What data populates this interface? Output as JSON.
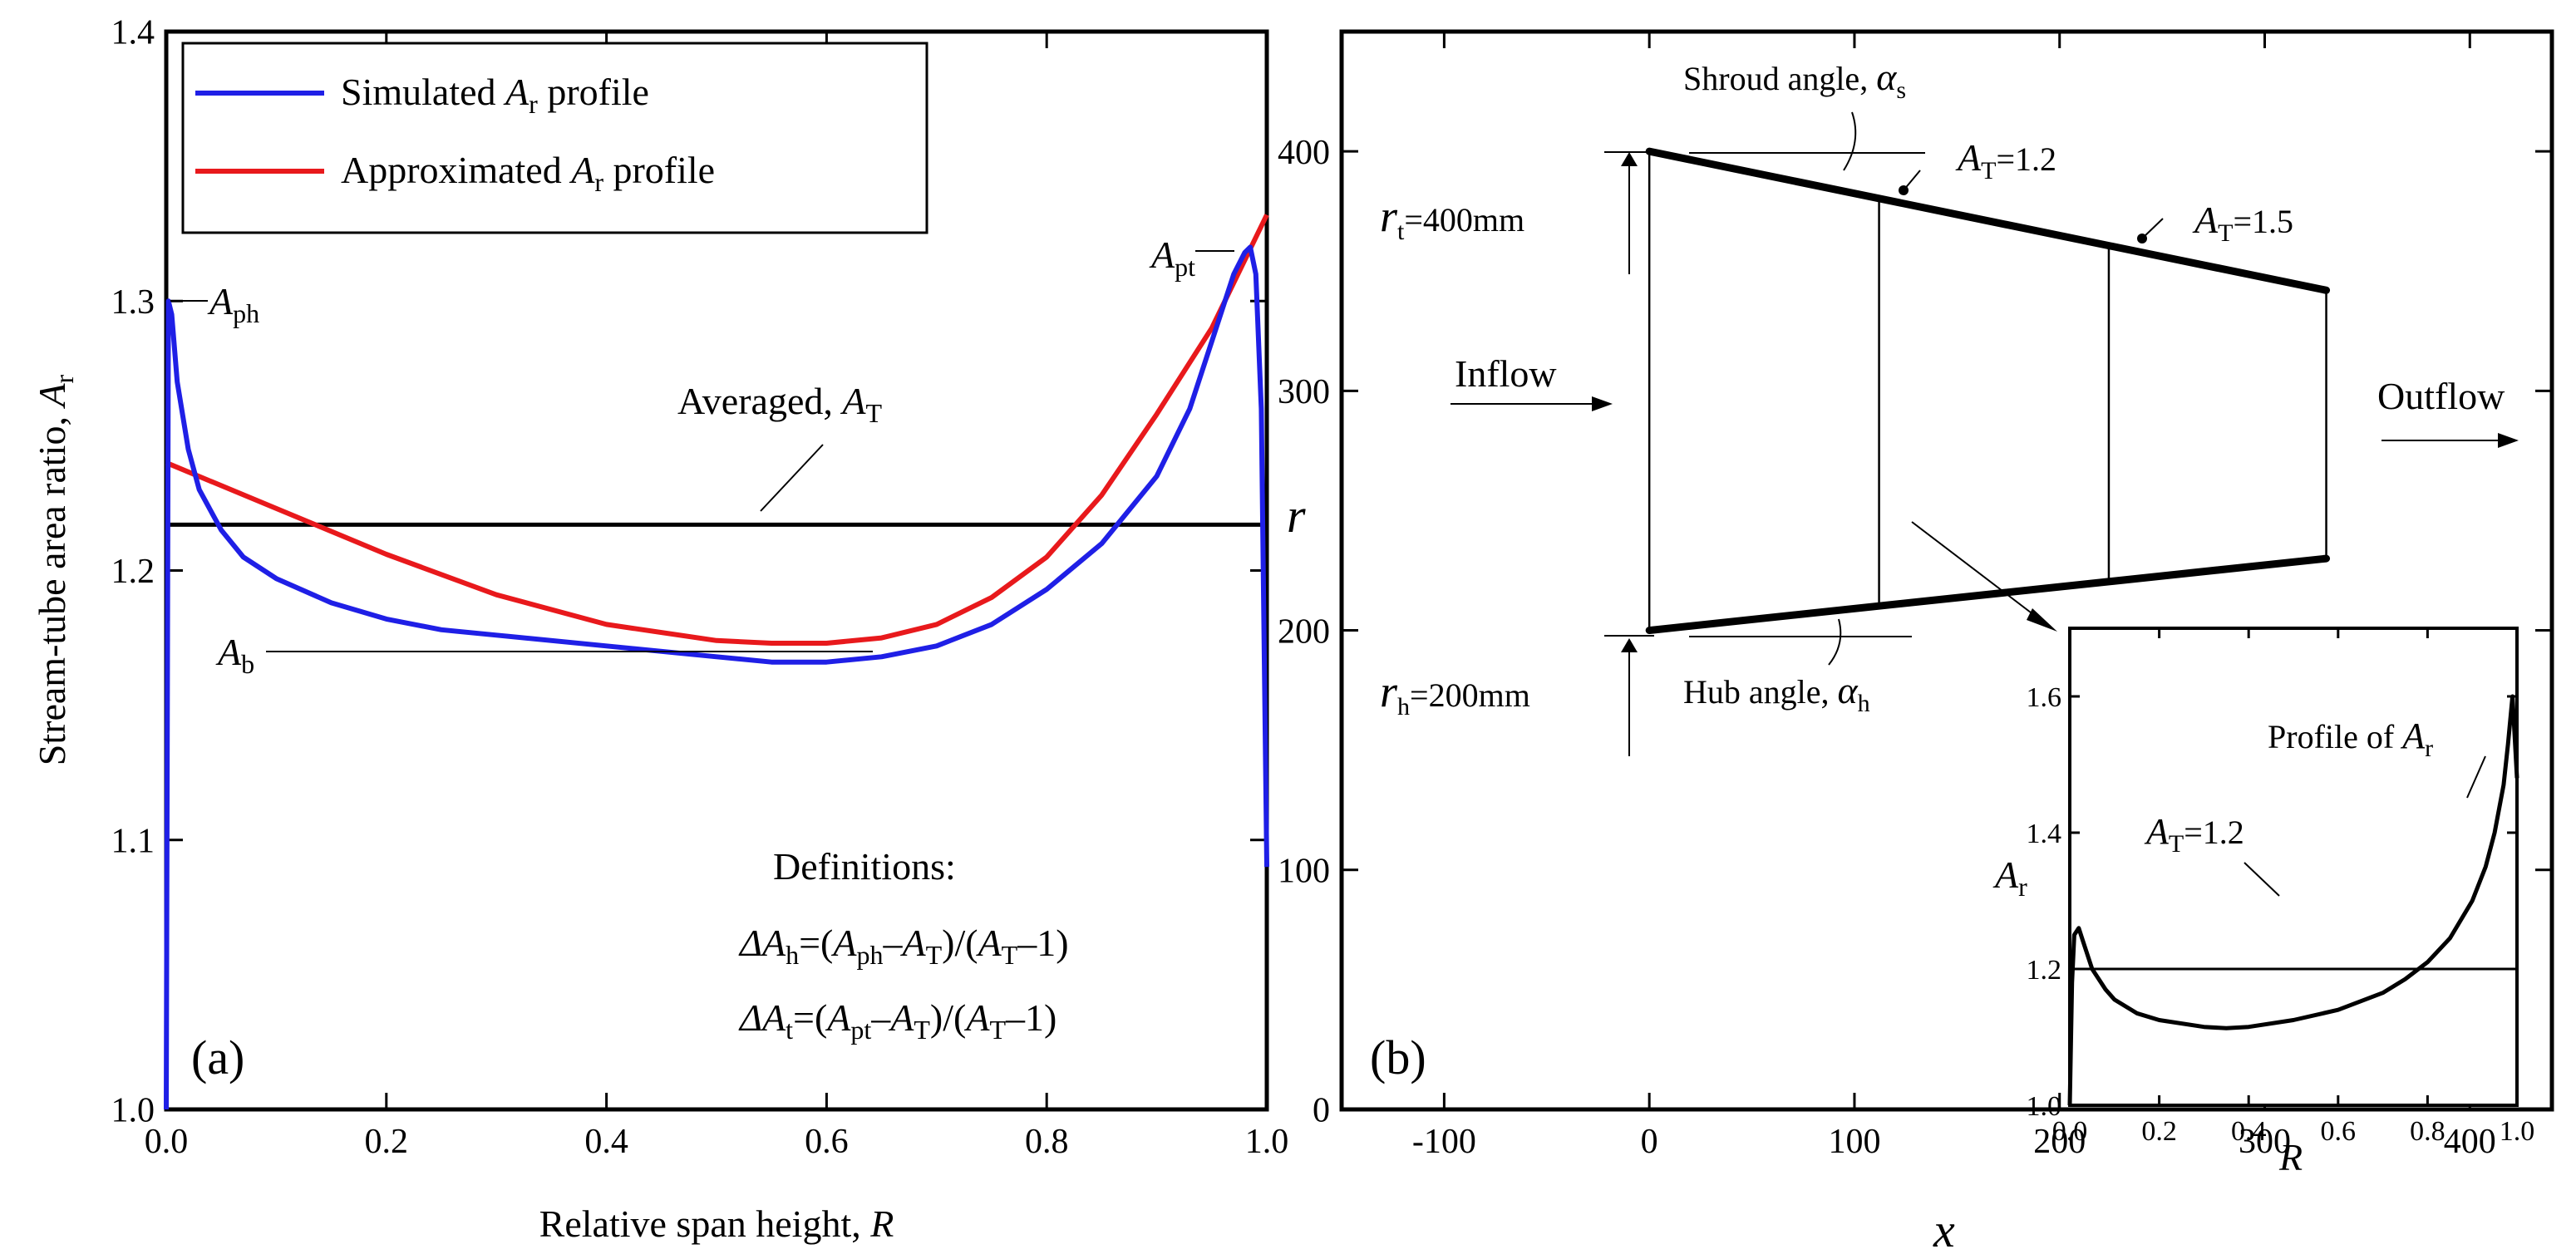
{
  "chart_data": [
    {
      "panel": "(a)",
      "type": "line",
      "xlabel": "Relative span height, ",
      "xlabel_var": "R",
      "ylabel": "Stream-tube area ratio, ",
      "ylabel_var": "A",
      "ylabel_sub": "r",
      "xlim": [
        0.0,
        1.0
      ],
      "ylim": [
        1.0,
        1.4
      ],
      "xticks": [
        "0.0",
        "0.2",
        "0.4",
        "0.6",
        "0.8",
        "1.0"
      ],
      "yticks": [
        "1.0",
        "1.1",
        "1.2",
        "1.3",
        "1.4"
      ],
      "legend": {
        "position": "top-left",
        "entries": [
          {
            "pre": "Simulated ",
            "var": "A",
            "sub": "r",
            "post": " profile"
          },
          {
            "pre": "Approximated ",
            "var": "A",
            "sub": "r",
            "post": " profile"
          }
        ]
      },
      "series": [
        {
          "name": "Simulated Ar profile",
          "color": "#1f1fe6",
          "x": [
            0.0,
            0.002,
            0.005,
            0.01,
            0.02,
            0.03,
            0.05,
            0.07,
            0.1,
            0.15,
            0.2,
            0.25,
            0.3,
            0.4,
            0.5,
            0.55,
            0.6,
            0.65,
            0.7,
            0.75,
            0.8,
            0.85,
            0.9,
            0.93,
            0.95,
            0.97,
            0.98,
            0.985,
            0.99,
            0.995,
            1.0
          ],
          "y": [
            1.0,
            1.3,
            1.295,
            1.27,
            1.245,
            1.23,
            1.215,
            1.205,
            1.197,
            1.188,
            1.182,
            1.178,
            1.176,
            1.172,
            1.168,
            1.166,
            1.166,
            1.168,
            1.172,
            1.18,
            1.193,
            1.21,
            1.235,
            1.26,
            1.285,
            1.31,
            1.318,
            1.32,
            1.31,
            1.26,
            1.09
          ]
        },
        {
          "name": "Approximated Ar profile",
          "color": "#e8191c",
          "x": [
            0.0,
            0.1,
            0.2,
            0.3,
            0.4,
            0.5,
            0.55,
            0.6,
            0.65,
            0.7,
            0.75,
            0.8,
            0.85,
            0.9,
            0.95,
            1.0
          ],
          "y": [
            1.24,
            1.223,
            1.206,
            1.191,
            1.18,
            1.174,
            1.173,
            1.173,
            1.175,
            1.18,
            1.19,
            1.205,
            1.228,
            1.258,
            1.29,
            1.332
          ]
        },
        {
          "name": "Averaged AT",
          "color": "#000000",
          "x": [
            0.0,
            1.0
          ],
          "y": [
            1.217,
            1.217
          ]
        }
      ],
      "annotations": {
        "a_ph": {
          "var": "A",
          "sub": "ph"
        },
        "a_pt": {
          "var": "A",
          "sub": "pt"
        },
        "a_b": {
          "var": "A",
          "sub": "b"
        },
        "averaged": {
          "pre": "Averaged, ",
          "var": "A",
          "sub": "T"
        },
        "definitions_title": "Definitions:",
        "def_h": {
          "d": "ΔA",
          "dsub": "h",
          "eq": "=(",
          "v1": "A",
          "s1": "ph",
          "minus": "–",
          "v2": "A",
          "s2": "T",
          "mid": ")/(",
          "v3": "A",
          "s3": "T",
          "end": "–1)"
        },
        "def_t": {
          "d": "ΔA",
          "dsub": "t",
          "eq": "=(",
          "v1": "A",
          "s1": "pt",
          "minus": "–",
          "v2": "A",
          "s2": "T",
          "mid": ")/(",
          "v3": "A",
          "s3": "T",
          "end": "–1)"
        }
      }
    },
    {
      "panel": "(b)",
      "type": "diagram",
      "xlabel": "x",
      "ylabel": "r",
      "xlim": [
        -150,
        440
      ],
      "ylim": [
        0,
        450
      ],
      "xticks": [
        "-100",
        "0",
        "100",
        "200",
        "300",
        "400"
      ],
      "yticks": [
        "0",
        "100",
        "200",
        "300",
        "400"
      ],
      "geometry": {
        "shroud": {
          "x": [
            0,
            330
          ],
          "y": [
            400,
            342
          ]
        },
        "hub": {
          "x": [
            0,
            330
          ],
          "y": [
            200,
            230
          ]
        },
        "stations_x": [
          0,
          112,
          224,
          330
        ]
      },
      "labels": {
        "shroud_angle": {
          "pre": "Shroud angle, ",
          "var": "α",
          "sub": "s"
        },
        "hub_angle": {
          "pre": "Hub angle, ",
          "var": "α",
          "sub": "h"
        },
        "at12": {
          "var": "A",
          "sub": "T",
          "post": "=1.2"
        },
        "at15": {
          "var": "A",
          "sub": "T",
          "post": "=1.5"
        },
        "rt": {
          "var": "r",
          "sub": "t",
          "post": "=400mm"
        },
        "rh": {
          "var": "r",
          "sub": "h",
          "post": "=200mm"
        },
        "inflow": "Inflow",
        "outflow": "Outflow"
      },
      "inset": {
        "type": "line",
        "xlabel": "R",
        "ylabel_var": "A",
        "ylabel_sub": "r",
        "xlim": [
          0.0,
          1.0
        ],
        "ylim": [
          1.0,
          1.7
        ],
        "xticks": [
          "0.0",
          "0.2",
          "0.4",
          "0.6",
          "0.8",
          "1.0"
        ],
        "yticks": [
          "1.0",
          "1.2",
          "1.4",
          "1.6"
        ],
        "profile_label": {
          "pre": "Profile of ",
          "var": "A",
          "sub": "r"
        },
        "at_label": {
          "var": "A",
          "sub": "T",
          "post": "=1.2"
        },
        "series": [
          {
            "name": "Profile of Ar",
            "x": [
              0.0,
              0.005,
              0.01,
              0.02,
              0.03,
              0.05,
              0.08,
              0.1,
              0.15,
              0.2,
              0.3,
              0.35,
              0.4,
              0.5,
              0.6,
              0.7,
              0.75,
              0.8,
              0.85,
              0.9,
              0.93,
              0.95,
              0.97,
              0.98,
              0.99,
              1.0
            ],
            "y": [
              1.0,
              1.18,
              1.25,
              1.26,
              1.24,
              1.2,
              1.17,
              1.155,
              1.135,
              1.125,
              1.115,
              1.113,
              1.115,
              1.125,
              1.14,
              1.165,
              1.185,
              1.21,
              1.245,
              1.3,
              1.35,
              1.4,
              1.47,
              1.53,
              1.6,
              1.48
            ]
          },
          {
            "name": "AT=1.2",
            "x": [
              0.0,
              1.0
            ],
            "y": [
              1.2,
              1.2
            ]
          }
        ]
      }
    }
  ]
}
